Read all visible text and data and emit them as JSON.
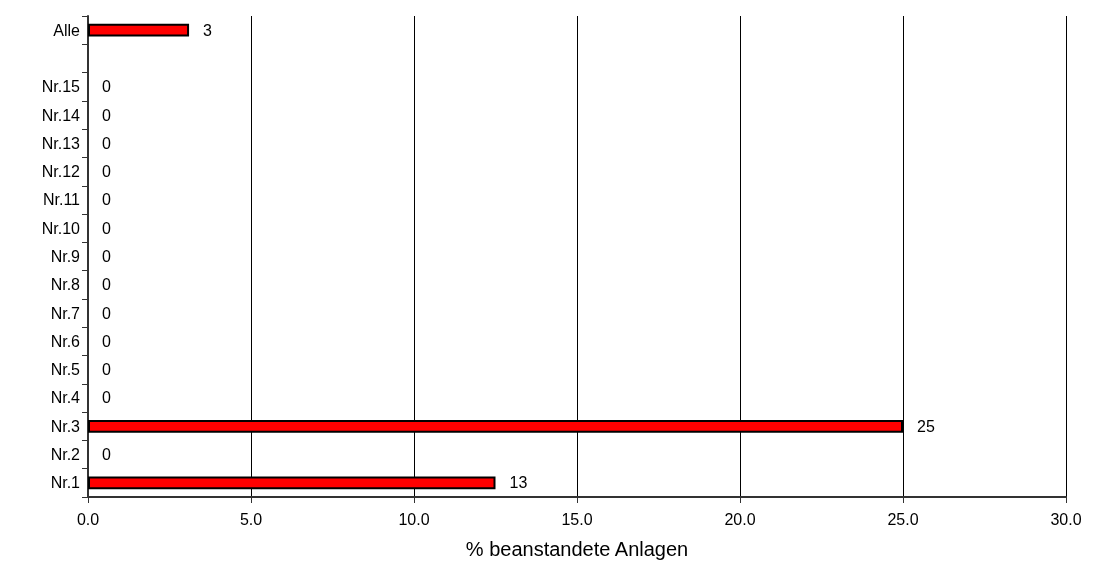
{
  "chart_data": {
    "type": "bar",
    "orientation": "horizontal",
    "xlabel": "% beanstandete Anlagen",
    "categories": [
      "Alle",
      null,
      "Nr.15",
      "Nr.14",
      "Nr.13",
      "Nr.12",
      "Nr.11",
      "Nr.10",
      "Nr.9",
      "Nr.8",
      "Nr.7",
      "Nr.6",
      "Nr.5",
      "Nr.4",
      "Nr.3",
      "Nr.2",
      "Nr.1"
    ],
    "values": [
      3.1,
      null,
      0,
      0,
      0,
      0,
      0,
      0,
      0,
      0,
      0,
      0,
      0,
      0,
      25,
      0,
      12.5
    ],
    "value_labels": [
      "3",
      null,
      "0",
      "0",
      "0",
      "0",
      "0",
      "0",
      "0",
      "0",
      "0",
      "0",
      "0",
      "0",
      "25",
      "0",
      "13"
    ],
    "color": "#ff0000",
    "xlim": [
      0,
      30
    ],
    "xticks": [
      {
        "value": 0,
        "label": "0.0"
      },
      {
        "value": 5,
        "label": "5.0"
      },
      {
        "value": 10,
        "label": "10.0"
      },
      {
        "value": 15,
        "label": "15.0"
      },
      {
        "value": 20,
        "label": "20.0"
      },
      {
        "value": 25,
        "label": "25.0"
      },
      {
        "value": 30,
        "label": "30.0"
      }
    ],
    "grid": "x"
  }
}
